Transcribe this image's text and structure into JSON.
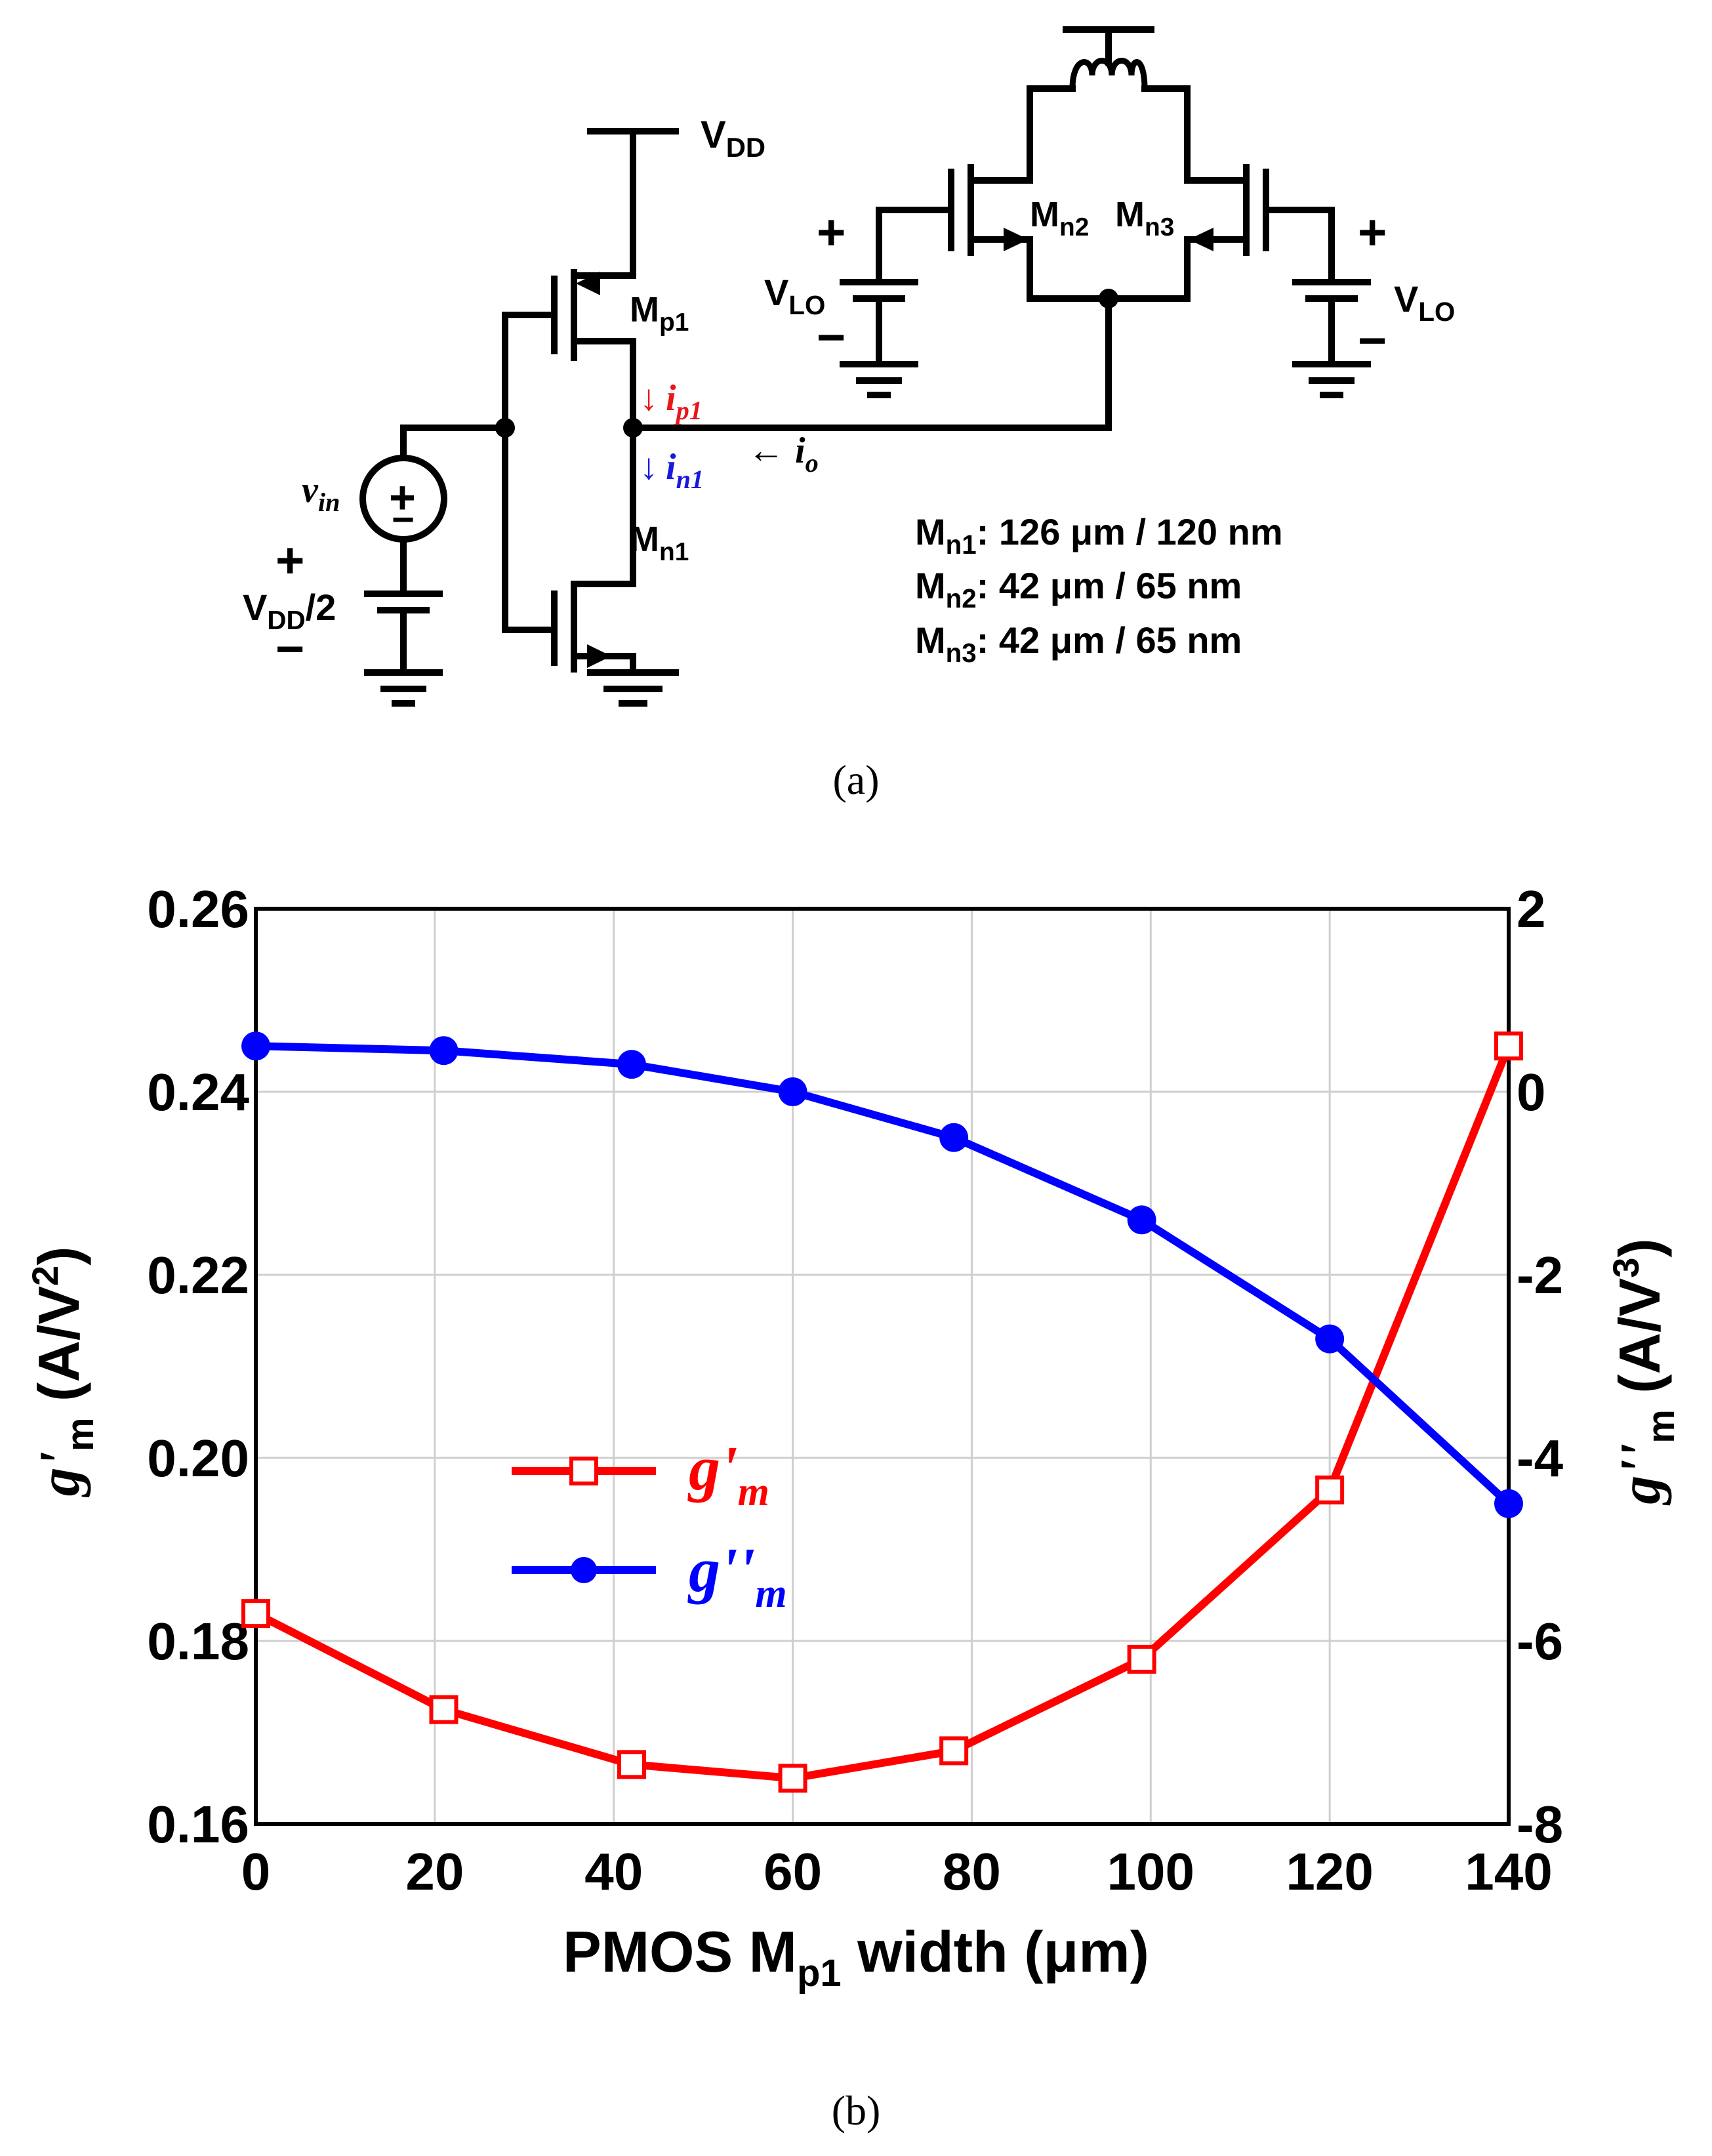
{
  "circuit": {
    "vdd": "V",
    "vdd_sub": "DD",
    "mp1": "M",
    "mp1_sub": "p1",
    "mn1": "M",
    "mn1_sub": "n1",
    "mn2": "M",
    "mn2_sub": "n2",
    "mn3": "M",
    "mn3_sub": "n3",
    "vlo_left": "V",
    "vlo_left_sub": "LO",
    "vlo_right": "V",
    "vlo_right_sub": "LO",
    "vin": "v",
    "vin_sub": "in",
    "vbias": "V",
    "vbias_sub": "DD",
    "vbias_tail": "/2",
    "ip1": "i",
    "ip1_sub": "p1",
    "in1": "i",
    "in1_sub": "n1",
    "io": "i",
    "io_sub": "o",
    "plus": "+",
    "minus": "−",
    "arrow_down": "↓",
    "arrow_left": "←",
    "sizes": [
      {
        "name": "M",
        "sub": "n1",
        "value": ": 126 μm / 120 nm"
      },
      {
        "name": "M",
        "sub": "n2",
        "value": ": 42 μm / 65 nm"
      },
      {
        "name": "M",
        "sub": "n3",
        "value": ": 42 μm / 65 nm"
      }
    ],
    "colors": {
      "ip1": "#e8171b",
      "in1": "#1a1adc"
    }
  },
  "captions": {
    "a": "(a)",
    "b": "(b)"
  },
  "chart_data": {
    "type": "line",
    "xlabel": "PMOS M",
    "xlabel_sub": "p1",
    "xlabel_tail": " width (μm)",
    "xlim": [
      0,
      140
    ],
    "xticks": [
      0,
      20,
      40,
      60,
      80,
      100,
      120,
      140
    ],
    "ylabel_left": {
      "g": "g'",
      "sub": "m",
      "unit": " (A/V",
      "sup": "2",
      "close": ")"
    },
    "ylabel_right": {
      "g": "g''",
      "sub": "m",
      "unit": " (A/V",
      "sup": "3",
      "close": ")"
    },
    "ylim_left": [
      0.16,
      0.26
    ],
    "yticks_left": [
      "0.16",
      "0.18",
      "0.20",
      "0.22",
      "0.24",
      "0.26"
    ],
    "ylim_right": [
      -8,
      2
    ],
    "yticks_right": [
      "-8",
      "-6",
      "-4",
      "-2",
      "0",
      "2"
    ],
    "grid": true,
    "legend_position": "center-left",
    "series": [
      {
        "name": "g'",
        "name_sub": "m",
        "axis": "left",
        "color": "#ff0000",
        "marker": "open-square",
        "x": [
          0,
          21,
          42,
          60,
          78,
          99,
          120,
          140
        ],
        "values": [
          0.183,
          0.1725,
          0.1665,
          0.165,
          0.168,
          0.178,
          0.1965,
          0.245
        ]
      },
      {
        "name": "g''",
        "name_sub": "m",
        "axis": "right",
        "color": "#0000ff",
        "marker": "filled-circle",
        "x": [
          0,
          21,
          42,
          60,
          78,
          99,
          120,
          140
        ],
        "values": [
          0.5,
          0.45,
          0.3,
          0.0,
          -0.5,
          -1.4,
          -2.7,
          -4.5
        ]
      }
    ]
  }
}
